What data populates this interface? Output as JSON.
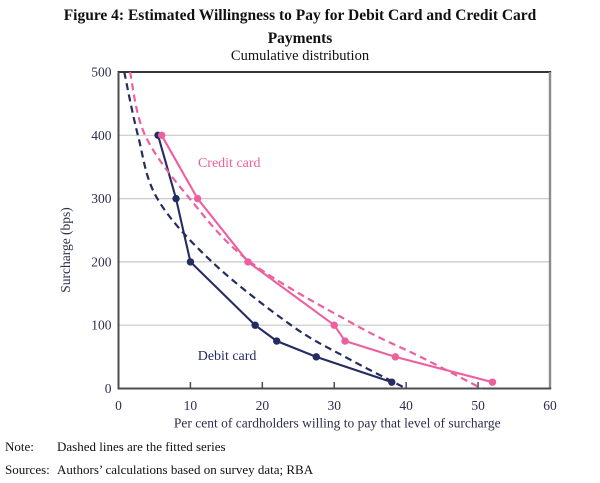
{
  "figure": {
    "title_line1": "Figure 4: Estimated Willingness to Pay for Debit Card and Credit Card",
    "title_line2": "Payments",
    "subtitle": "Cumulative distribution"
  },
  "chart_data": {
    "type": "line",
    "title": "Cumulative distribution",
    "xlabel": "Per cent of cardholders willing to pay that level of surcharge",
    "ylabel": "Surcharge (bps)",
    "xlim": [
      0,
      60
    ],
    "ylim": [
      0,
      500
    ],
    "x_ticks": [
      0,
      10,
      20,
      30,
      40,
      50,
      60
    ],
    "y_ticks": [
      0,
      100,
      200,
      300,
      400,
      500
    ],
    "grid": "horizontal-only",
    "colors": {
      "debit": "#252c62",
      "credit": "#ee5f9e",
      "gridline": "#c9c9c9"
    },
    "series": [
      {
        "name": "Debit card",
        "style": "solid",
        "marker": "circle",
        "color": "#252c62",
        "points": [
          [
            5.5,
            400
          ],
          [
            8,
            300
          ],
          [
            10,
            200
          ],
          [
            19,
            100
          ],
          [
            22,
            75
          ],
          [
            27.5,
            50
          ],
          [
            38,
            10
          ]
        ]
      },
      {
        "name": "Credit card",
        "style": "solid",
        "marker": "circle",
        "color": "#ee5f9e",
        "points": [
          [
            6,
            400
          ],
          [
            11,
            300
          ],
          [
            18,
            200
          ],
          [
            30,
            100
          ],
          [
            31.5,
            75
          ],
          [
            38.5,
            50
          ],
          [
            52,
            10
          ]
        ]
      },
      {
        "name": "Debit card fitted",
        "style": "dashed",
        "color": "#252c62",
        "points": [
          [
            0.8,
            500
          ],
          [
            2.7,
            400
          ],
          [
            5.4,
            300
          ],
          [
            13,
            200
          ],
          [
            24,
            100
          ],
          [
            31.5,
            50
          ],
          [
            40,
            0
          ]
        ]
      },
      {
        "name": "Credit card fitted",
        "style": "dashed",
        "color": "#ee5f9e",
        "points": [
          [
            1.6,
            500
          ],
          [
            3.7,
            400
          ],
          [
            9.9,
            300
          ],
          [
            18.3,
            200
          ],
          [
            33,
            100
          ],
          [
            42,
            50
          ],
          [
            50.5,
            0
          ]
        ]
      }
    ],
    "annotations": [
      {
        "text": "Credit card",
        "x": 15.4,
        "y": 350,
        "color": "#ee5f9e"
      },
      {
        "text": "Debit card",
        "x": 15.1,
        "y": 45,
        "color": "#252c62"
      }
    ]
  },
  "notes": {
    "note_label": "Note:",
    "note_text": "Dashed lines are the fitted series",
    "sources_label": "Sources:",
    "sources_text": "Authors’ calculations based on survey data; RBA"
  }
}
